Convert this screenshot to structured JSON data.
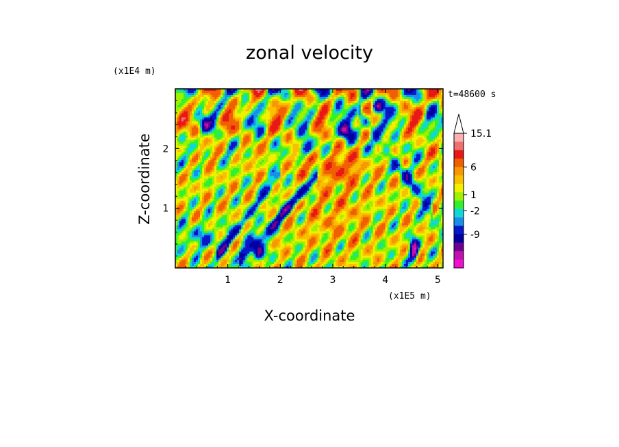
{
  "chart_data": {
    "type": "heatmap",
    "title": "zonal velocity",
    "xlabel": "X-coordinate",
    "ylabel": "Z-coordinate",
    "x_unit": "(x1E5 m)",
    "y_unit": "(x1E4 m)",
    "time_label": "t=48600 s",
    "xlim": [
      0,
      5.1
    ],
    "ylim": [
      0,
      3.0
    ],
    "x_ticks": [
      1,
      2,
      3,
      4,
      5
    ],
    "y_ticks": [
      1,
      2
    ],
    "x_tick_labels": [
      "1",
      "2",
      "3",
      "4",
      "5"
    ],
    "y_tick_labels": [
      "1",
      "2"
    ],
    "colorbar": {
      "labels": [
        "15.1",
        "6",
        "1",
        "-2",
        "-9"
      ],
      "colors": [
        "#fab0b0",
        "#f07070",
        "#e81818",
        "#f06000",
        "#f89800",
        "#f8c000",
        "#f0f000",
        "#a0f000",
        "#30f030",
        "#10d8d8",
        "#1890e8",
        "#0818c8",
        "#0000a0",
        "#700090",
        "#c010b0",
        "#f010d0"
      ],
      "extend_top": true,
      "ordering": "high-to-low"
    },
    "field": {
      "shape": "2D contour-filled field, values roughly -15 to 15",
      "features": [
        {
          "x": 3.0,
          "z": 0.9,
          "value": 1,
          "desc": "broad weak positive core near center-bottom"
        },
        {
          "x": 3.0,
          "z": 1.6,
          "value": 4,
          "desc": "orange/yellow dome above center"
        },
        {
          "x": 1.6,
          "z": 1.2,
          "value": -6,
          "desc": "blue diagonal band from lower-left rising right"
        },
        {
          "x": 3.3,
          "z": 2.3,
          "value": -8,
          "desc": "blue cells upper middle"
        },
        {
          "x": 4.5,
          "z": 0.3,
          "value": -10,
          "desc": "deep negative near bottom right"
        },
        {
          "x": 0.2,
          "z": 1.8,
          "value": 3,
          "desc": "warm patches upper left"
        }
      ]
    }
  }
}
